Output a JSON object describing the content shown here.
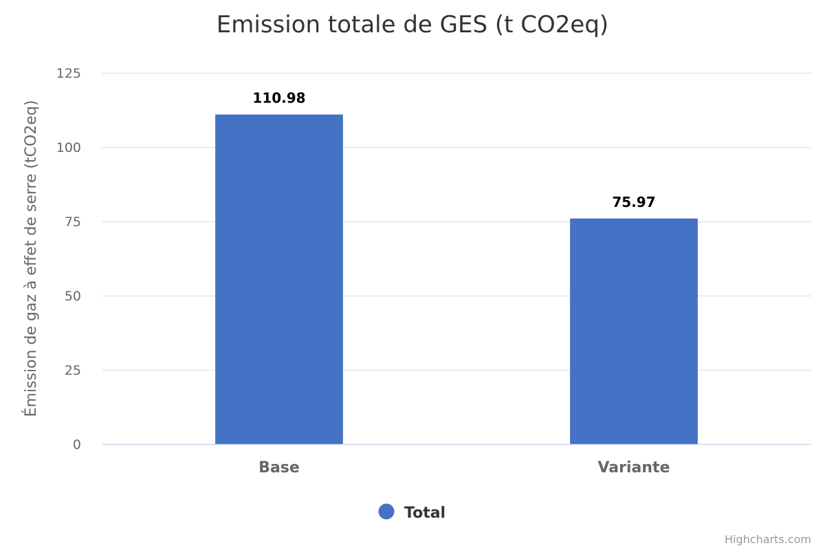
{
  "chart_data": {
    "type": "bar",
    "title": "Emission totale de GES (t CO2eq)",
    "xlabel": "",
    "ylabel": "Émission de gaz à effet de serre (tCO2eq)",
    "categories": [
      "Base",
      "Variante"
    ],
    "series": [
      {
        "name": "Total",
        "values": [
          110.98,
          75.97
        ],
        "color": "#4472c4"
      }
    ],
    "data_labels": [
      "110.98",
      "75.97"
    ],
    "yticks": [
      "0",
      "25",
      "50",
      "75",
      "100",
      "125"
    ],
    "ylim": [
      0,
      125
    ],
    "grid": true,
    "legend": "bottom-center"
  },
  "credits": "Highcharts.com"
}
